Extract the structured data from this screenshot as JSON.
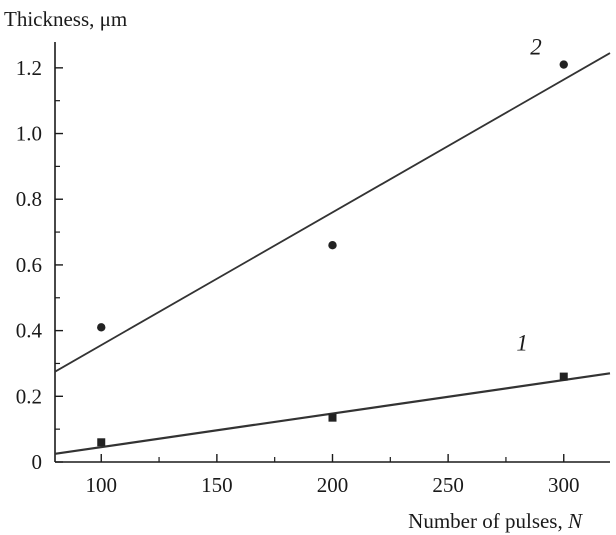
{
  "chart_data": {
    "type": "scatter",
    "title": "",
    "ylabel": "Thickness, μm",
    "xlabel_text": "Number of pulses, ",
    "xlabel_var": "N",
    "xlim": [
      80,
      320
    ],
    "ylim": [
      0,
      1.3
    ],
    "x_ticks": [
      100,
      150,
      200,
      250,
      300
    ],
    "x_tick_labels": [
      "100",
      "150",
      "200",
      "250",
      "300"
    ],
    "y_ticks": [
      0,
      0.2,
      0.4,
      0.6,
      0.8,
      1.0,
      1.2
    ],
    "y_tick_labels": [
      "0",
      "0.2",
      "0.4",
      "0.6",
      "0.8",
      "1.0",
      "1.2"
    ],
    "grid": false,
    "series": [
      {
        "name": "1",
        "marker": "square",
        "x": [
          100,
          200,
          300
        ],
        "y": [
          0.06,
          0.135,
          0.26
        ],
        "fit_line": {
          "x": [
            80,
            320
          ],
          "y": [
            0.025,
            0.27
          ]
        }
      },
      {
        "name": "2",
        "marker": "circle",
        "x": [
          100,
          200,
          300
        ],
        "y": [
          0.41,
          0.66,
          1.21
        ],
        "fit_line": {
          "x": [
            80,
            320
          ],
          "y": [
            0.275,
            1.245
          ]
        }
      }
    ],
    "colors": {
      "axis": "#1a1a1a",
      "line": "#333333",
      "marker": "#222222"
    }
  }
}
